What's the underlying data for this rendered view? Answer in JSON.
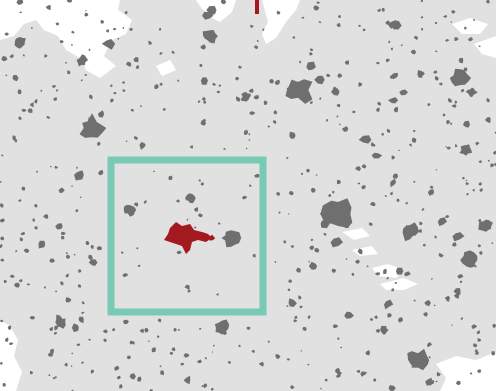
{
  "map": {
    "colors": {
      "land": "#e1e1e1",
      "water": "#ffffff",
      "settlement": "#6f6f6f",
      "highlight": "#a3191f",
      "frame": "#79cab4"
    },
    "legend_items": [],
    "labels": []
  }
}
